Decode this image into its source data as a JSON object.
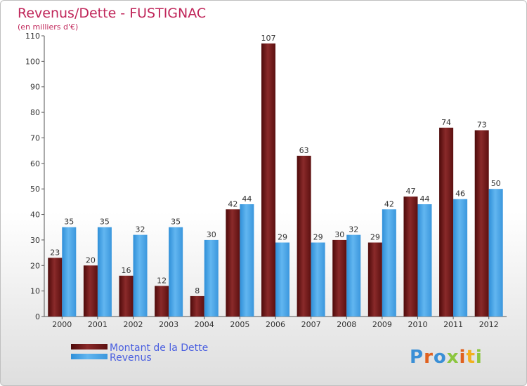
{
  "chart_data": {
    "type": "bar",
    "title": "Revenus/Dette - FUSTIGNAC",
    "subtitle": "(en milliers d'€)",
    "categories": [
      "2000",
      "2001",
      "2002",
      "2003",
      "2004",
      "2005",
      "2006",
      "2007",
      "2008",
      "2009",
      "2010",
      "2011",
      "2012"
    ],
    "series": [
      {
        "name": "Montant de la Dette",
        "color": "#7a1c1c",
        "values": [
          23,
          20,
          16,
          12,
          8,
          42,
          107,
          63,
          30,
          29,
          47,
          74,
          73
        ]
      },
      {
        "name": "Revenus",
        "color": "#4aa3e6",
        "values": [
          35,
          35,
          32,
          35,
          30,
          44,
          29,
          29,
          32,
          42,
          44,
          46,
          50
        ]
      }
    ],
    "ylim": [
      0,
      110
    ],
    "yticks": [
      0,
      10,
      20,
      30,
      40,
      50,
      60,
      70,
      80,
      90,
      100,
      110
    ],
    "grid": false,
    "legend": "bottom-left"
  },
  "watermark": {
    "text": "Proxiti"
  },
  "colors": {
    "title": "#c0265a",
    "axis": "#555555",
    "legend_text": "#4a5fe0"
  }
}
